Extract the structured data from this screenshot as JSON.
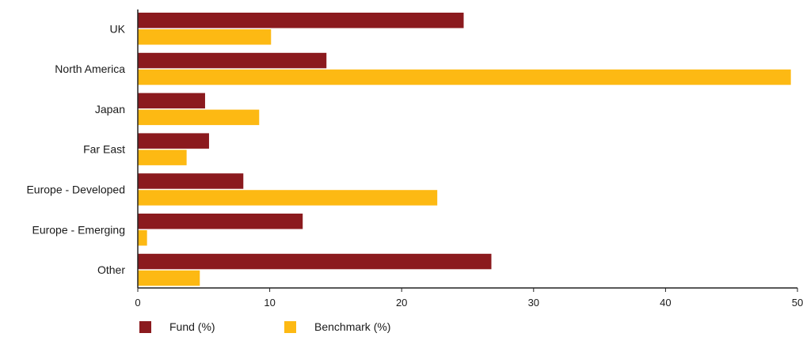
{
  "chart_data": {
    "type": "bar",
    "orientation": "horizontal",
    "categories": [
      "UK",
      "North America",
      "Japan",
      "Far East",
      "Europe - Developed",
      "Europe - Emerging",
      "Other"
    ],
    "series": [
      {
        "name": "Fund (%)",
        "color": "#8b1a1e",
        "values": [
          24.7,
          14.3,
          5.1,
          5.4,
          8.0,
          12.5,
          26.8
        ]
      },
      {
        "name": "Benchmark (%)",
        "color": "#fdb913",
        "values": [
          10.1,
          49.5,
          9.2,
          3.7,
          22.7,
          0.7,
          4.7
        ]
      }
    ],
    "xlim": [
      0,
      50
    ],
    "xticks": [
      0,
      10,
      20,
      30,
      40,
      50
    ],
    "grid": false,
    "legend_position": "bottom-left"
  }
}
